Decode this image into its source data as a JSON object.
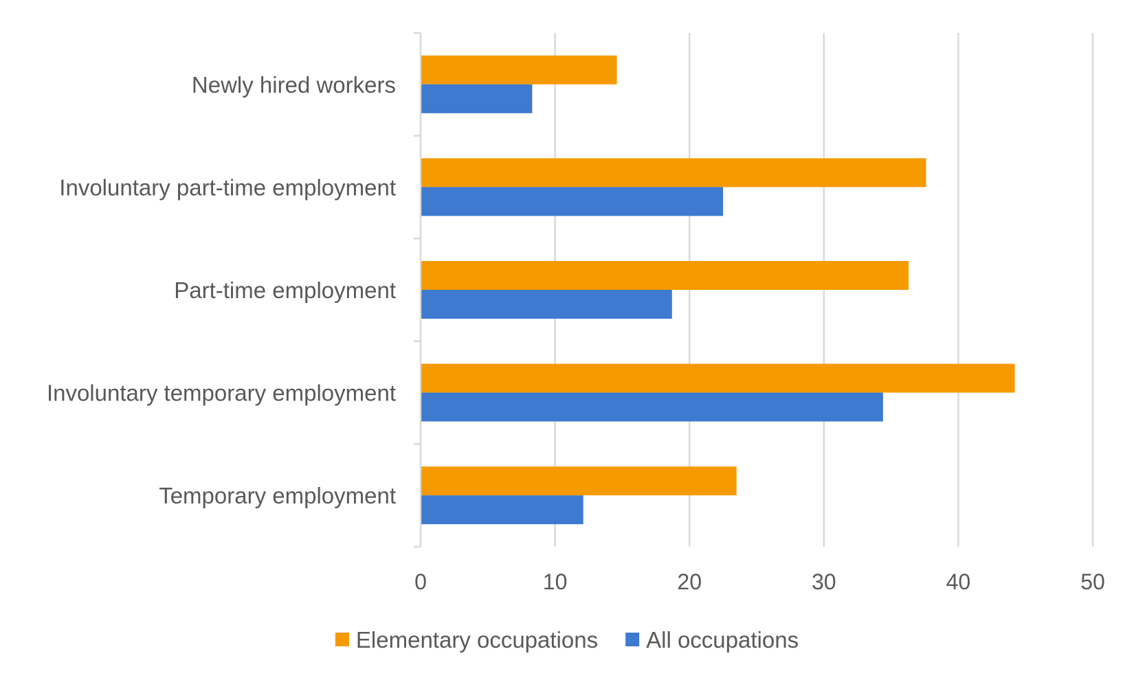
{
  "chart_data": {
    "type": "bar",
    "orientation": "horizontal",
    "categories": [
      "Newly hired workers",
      "Involuntary part-time employment",
      "Part-time employment",
      "Involuntary temporary employment",
      "Temporary employment"
    ],
    "series": [
      {
        "name": "Elementary occupations",
        "color": "#f59a00",
        "values": [
          14.6,
          37.6,
          36.3,
          44.2,
          23.5
        ]
      },
      {
        "name": "All occupations",
        "color": "#3d7ad0",
        "values": [
          8.3,
          22.5,
          18.7,
          34.4,
          12.1
        ]
      }
    ],
    "xlim": [
      0,
      50
    ],
    "xticks": [
      0,
      10,
      20,
      30,
      40,
      50
    ],
    "grid": "vertical",
    "legend_position": "bottom",
    "title": "",
    "xlabel": "",
    "ylabel": ""
  }
}
